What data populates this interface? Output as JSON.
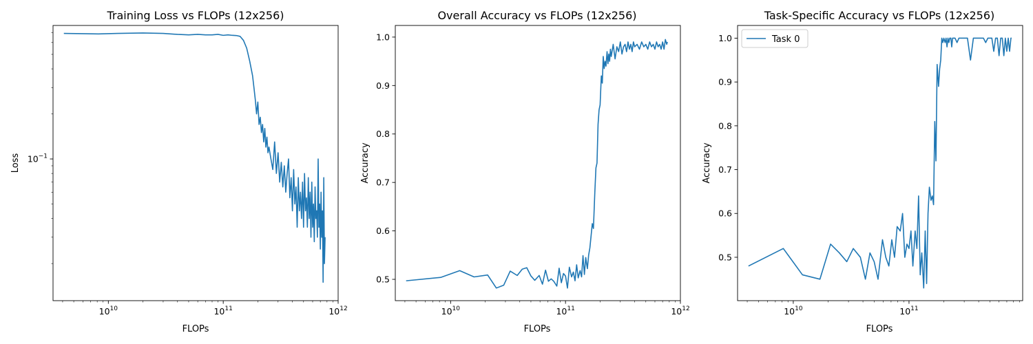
{
  "colors": {
    "series": "#1f77b4",
    "axes": "#000000",
    "legend_border": "#cccccc"
  },
  "chart_data": [
    {
      "type": "line",
      "title": "Training Loss vs FLOPs (12x256)",
      "xlabel": "FLOPs",
      "ylabel": "Loss",
      "xscale": "log",
      "yscale": "log",
      "xlim": [
        3300000000.0,
        1000000000000.0
      ],
      "ylim": [
        0.0113,
        0.78
      ],
      "xticks": [
        {
          "value": 10000000000.0,
          "base": "10",
          "exp": "10"
        },
        {
          "value": 100000000000.0,
          "base": "10",
          "exp": "11"
        },
        {
          "value": 1000000000000.0,
          "base": "10",
          "exp": "12"
        }
      ],
      "yticks": [
        {
          "value": 0.1,
          "base": "10",
          "exp": "−1"
        }
      ],
      "grid": false,
      "legend": null,
      "series": [
        {
          "x": [
            4100000000.0,
            8200000000.0,
            12000000000.0,
            20000000000.0,
            30000000000.0,
            40000000000.0,
            50000000000.0,
            60000000000.0,
            70000000000.0,
            80000000000.0,
            90000000000.0,
            100000000000.0,
            110000000000.0,
            120000000000.0,
            130000000000.0,
            140000000000.0,
            150000000000.0,
            160000000000.0,
            170000000000.0,
            180000000000.0,
            185000000000.0,
            190000000000.0,
            195000000000.0,
            200000000000.0,
            205000000000.0,
            210000000000.0,
            215000000000.0,
            220000000000.0,
            225000000000.0,
            230000000000.0,
            235000000000.0,
            240000000000.0,
            245000000000.0,
            250000000000.0,
            260000000000.0,
            270000000000.0,
            280000000000.0,
            290000000000.0,
            300000000000.0,
            310000000000.0,
            320000000000.0,
            330000000000.0,
            340000000000.0,
            350000000000.0,
            360000000000.0,
            370000000000.0,
            380000000000.0,
            390000000000.0,
            400000000000.0,
            410000000000.0,
            420000000000.0,
            430000000000.0,
            440000000000.0,
            450000000000.0,
            460000000000.0,
            470000000000.0,
            480000000000.0,
            490000000000.0,
            500000000000.0,
            510000000000.0,
            520000000000.0,
            530000000000.0,
            540000000000.0,
            550000000000.0,
            560000000000.0,
            570000000000.0,
            580000000000.0,
            590000000000.0,
            600000000000.0,
            610000000000.0,
            620000000000.0,
            630000000000.0,
            640000000000.0,
            650000000000.0,
            660000000000.0,
            670000000000.0,
            680000000000.0,
            690000000000.0,
            700000000000.0,
            710000000000.0,
            720000000000.0,
            730000000000.0,
            740000000000.0,
            750000000000.0,
            760000000000.0,
            770000000000.0
          ],
          "y": [
            0.69,
            0.685,
            0.69,
            0.695,
            0.69,
            0.68,
            0.675,
            0.68,
            0.675,
            0.675,
            0.68,
            0.67,
            0.675,
            0.67,
            0.668,
            0.66,
            0.62,
            0.55,
            0.45,
            0.36,
            0.3,
            0.25,
            0.2,
            0.24,
            0.17,
            0.19,
            0.15,
            0.17,
            0.13,
            0.16,
            0.12,
            0.14,
            0.11,
            0.12,
            0.1,
            0.085,
            0.13,
            0.08,
            0.11,
            0.07,
            0.095,
            0.065,
            0.09,
            0.06,
            0.08,
            0.1,
            0.055,
            0.075,
            0.045,
            0.085,
            0.05,
            0.065,
            0.035,
            0.075,
            0.045,
            0.06,
            0.04,
            0.07,
            0.035,
            0.08,
            0.045,
            0.055,
            0.035,
            0.075,
            0.04,
            0.06,
            0.03,
            0.07,
            0.035,
            0.05,
            0.028,
            0.065,
            0.04,
            0.045,
            0.03,
            0.1,
            0.035,
            0.05,
            0.025,
            0.06,
            0.03,
            0.045,
            0.015,
            0.075,
            0.02,
            0.03
          ]
        }
      ]
    },
    {
      "type": "line",
      "title": "Overall Accuracy vs FLOPs (12x256)",
      "xlabel": "FLOPs",
      "ylabel": "Accuracy",
      "xscale": "log",
      "yscale": "linear",
      "xlim": [
        3300000000.0,
        1000000000000.0
      ],
      "ylim": [
        0.456,
        1.024
      ],
      "xticks": [
        {
          "value": 10000000000.0,
          "base": "10",
          "exp": "10"
        },
        {
          "value": 100000000000.0,
          "base": "10",
          "exp": "11"
        },
        {
          "value": 1000000000000.0,
          "base": "10",
          "exp": "12"
        }
      ],
      "yticks": [
        {
          "value": 0.5,
          "label": "0.5"
        },
        {
          "value": 0.6,
          "label": "0.6"
        },
        {
          "value": 0.7,
          "label": "0.7"
        },
        {
          "value": 0.8,
          "label": "0.8"
        },
        {
          "value": 0.9,
          "label": "0.9"
        },
        {
          "value": 1.0,
          "label": "1.0"
        }
      ],
      "grid": false,
      "legend": null,
      "series": [
        {
          "x": [
            4100000000.0,
            8200000000.0,
            12000000000.0,
            16000000000.0,
            21000000000.0,
            25000000000.0,
            29000000000.0,
            33000000000.0,
            38000000000.0,
            42000000000.0,
            46000000000.0,
            50000000000.0,
            54000000000.0,
            59000000000.0,
            63000000000.0,
            67000000000.0,
            71000000000.0,
            75000000000.0,
            79000000000.0,
            84000000000.0,
            88000000000.0,
            92000000000.0,
            96000000000.0,
            100000000000.0,
            104000000000.0,
            108000000000.0,
            113000000000.0,
            117000000000.0,
            121000000000.0,
            125000000000.0,
            129000000000.0,
            134000000000.0,
            138000000000.0,
            142000000000.0,
            146000000000.0,
            150000000000.0,
            155000000000.0,
            159000000000.0,
            163000000000.0,
            167000000000.0,
            171000000000.0,
            175000000000.0,
            180000000000.0,
            184000000000.0,
            188000000000.0,
            192000000000.0,
            196000000000.0,
            200000000000.0,
            205000000000.0,
            209000000000.0,
            213000000000.0,
            217000000000.0,
            221000000000.0,
            225000000000.0,
            230000000000.0,
            234000000000.0,
            238000000000.0,
            242000000000.0,
            246000000000.0,
            250000000000.0,
            260000000000.0,
            270000000000.0,
            280000000000.0,
            290000000000.0,
            300000000000.0,
            310000000000.0,
            320000000000.0,
            330000000000.0,
            340000000000.0,
            350000000000.0,
            360000000000.0,
            370000000000.0,
            380000000000.0,
            390000000000.0,
            400000000000.0,
            420000000000.0,
            440000000000.0,
            460000000000.0,
            480000000000.0,
            500000000000.0,
            520000000000.0,
            540000000000.0,
            560000000000.0,
            580000000000.0,
            600000000000.0,
            620000000000.0,
            640000000000.0,
            660000000000.0,
            680000000000.0,
            700000000000.0,
            720000000000.0,
            740000000000.0,
            760000000000.0,
            770000000000.0
          ],
          "y": [
            0.497,
            0.504,
            0.518,
            0.505,
            0.509,
            0.482,
            0.488,
            0.517,
            0.508,
            0.521,
            0.524,
            0.507,
            0.498,
            0.508,
            0.49,
            0.519,
            0.496,
            0.501,
            0.496,
            0.486,
            0.523,
            0.493,
            0.512,
            0.507,
            0.482,
            0.525,
            0.505,
            0.515,
            0.497,
            0.53,
            0.503,
            0.518,
            0.505,
            0.549,
            0.51,
            0.545,
            0.522,
            0.55,
            0.565,
            0.59,
            0.615,
            0.605,
            0.68,
            0.73,
            0.74,
            0.82,
            0.85,
            0.86,
            0.92,
            0.905,
            0.96,
            0.935,
            0.95,
            0.94,
            0.97,
            0.945,
            0.965,
            0.95,
            0.975,
            0.96,
            0.985,
            0.955,
            0.98,
            0.97,
            0.99,
            0.965,
            0.98,
            0.985,
            0.97,
            0.99,
            0.975,
            0.985,
            0.97,
            0.99,
            0.98,
            0.985,
            0.975,
            0.99,
            0.98,
            0.985,
            0.975,
            0.99,
            0.98,
            0.985,
            0.975,
            0.99,
            0.98,
            0.985,
            0.975,
            0.99,
            0.975,
            0.995,
            0.985,
            0.99
          ]
        }
      ]
    },
    {
      "type": "line",
      "title": "Task-Specific Accuracy vs FLOPs (12x256)",
      "xlabel": "FLOPs",
      "ylabel": "Accuracy",
      "xscale": "log",
      "yscale": "linear",
      "xlim": [
        3300000000.0,
        960000000000.0
      ],
      "ylim": [
        0.401,
        1.029
      ],
      "xticks": [
        {
          "value": 10000000000.0,
          "base": "10",
          "exp": "10"
        },
        {
          "value": 100000000000.0,
          "base": "10",
          "exp": "11"
        }
      ],
      "yticks": [
        {
          "value": 0.5,
          "label": "0.5"
        },
        {
          "value": 0.6,
          "label": "0.6"
        },
        {
          "value": 0.7,
          "label": "0.7"
        },
        {
          "value": 0.8,
          "label": "0.8"
        },
        {
          "value": 0.9,
          "label": "0.9"
        },
        {
          "value": 1.0,
          "label": "1.0"
        }
      ],
      "grid": false,
      "legend": "top-left",
      "series": [
        {
          "name": "Task 0",
          "x": [
            4100000000.0,
            8200000000.0,
            12000000000.0,
            17000000000.0,
            21000000000.0,
            25000000000.0,
            29000000000.0,
            33000000000.0,
            38000000000.0,
            42000000000.0,
            46000000000.0,
            50000000000.0,
            54000000000.0,
            59000000000.0,
            63000000000.0,
            67000000000.0,
            71000000000.0,
            75000000000.0,
            79000000000.0,
            84000000000.0,
            88000000000.0,
            92000000000.0,
            96000000000.0,
            100000000000.0,
            104000000000.0,
            108000000000.0,
            113000000000.0,
            117000000000.0,
            121000000000.0,
            125000000000.0,
            129000000000.0,
            134000000000.0,
            138000000000.0,
            142000000000.0,
            146000000000.0,
            150000000000.0,
            155000000000.0,
            159000000000.0,
            163000000000.0,
            167000000000.0,
            171000000000.0,
            175000000000.0,
            180000000000.0,
            184000000000.0,
            188000000000.0,
            192000000000.0,
            196000000000.0,
            200000000000.0,
            205000000000.0,
            209000000000.0,
            213000000000.0,
            217000000000.0,
            221000000000.0,
            225000000000.0,
            230000000000.0,
            234000000000.0,
            238000000000.0,
            242000000000.0,
            246000000000.0,
            250000000000.0,
            260000000000.0,
            270000000000.0,
            280000000000.0,
            290000000000.0,
            300000000000.0,
            320000000000.0,
            340000000000.0,
            360000000000.0,
            380000000000.0,
            400000000000.0,
            420000000000.0,
            440000000000.0,
            460000000000.0,
            480000000000.0,
            500000000000.0,
            520000000000.0,
            540000000000.0,
            560000000000.0,
            580000000000.0,
            600000000000.0,
            620000000000.0,
            640000000000.0,
            660000000000.0,
            680000000000.0,
            700000000000.0,
            720000000000.0,
            740000000000.0,
            760000000000.0,
            770000000000.0
          ],
          "y": [
            0.48,
            0.52,
            0.46,
            0.45,
            0.53,
            0.51,
            0.49,
            0.52,
            0.5,
            0.45,
            0.51,
            0.49,
            0.45,
            0.54,
            0.5,
            0.48,
            0.54,
            0.5,
            0.57,
            0.56,
            0.6,
            0.5,
            0.53,
            0.52,
            0.56,
            0.48,
            0.56,
            0.52,
            0.64,
            0.46,
            0.51,
            0.43,
            0.56,
            0.44,
            0.6,
            0.66,
            0.63,
            0.64,
            0.62,
            0.81,
            0.72,
            0.94,
            0.89,
            0.93,
            0.95,
            1.0,
            0.99,
            1.0,
            0.99,
            1.0,
            0.98,
            1.0,
            0.99,
            1.0,
            1.0,
            0.98,
            1.0,
            1.0,
            1.0,
            1.0,
            0.99,
            1.0,
            1.0,
            1.0,
            1.0,
            1.0,
            0.95,
            1.0,
            1.0,
            1.0,
            1.0,
            1.0,
            0.99,
            1.0,
            1.0,
            1.0,
            0.97,
            1.0,
            1.0,
            0.96,
            1.0,
            1.0,
            0.96,
            1.0,
            0.97,
            1.0,
            0.97,
            1.0,
            1.0
          ]
        }
      ]
    }
  ]
}
